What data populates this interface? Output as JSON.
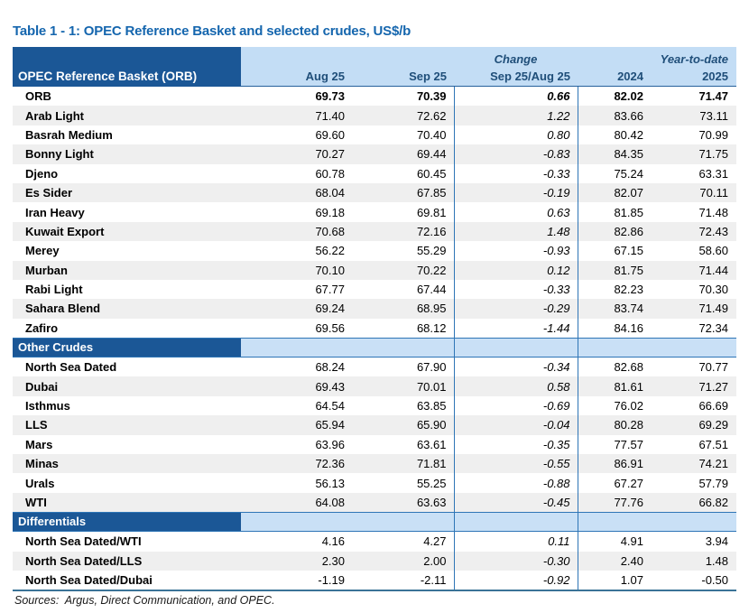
{
  "title": "Table 1 - 1: OPEC Reference Basket and selected crudes, US$/b",
  "colors": {
    "dark_blue": "#1B5796",
    "header_band": "#C3DDF5",
    "section_band": "#C9E0F6",
    "header_text": "#1F4E79",
    "title_color": "#1566AE",
    "vline": "#2E75B6",
    "header_underline": "#26619C",
    "bottom_line": "#3A7397",
    "stripe": "#EFEFEF"
  },
  "header": {
    "corner_label": "OPEC Reference Basket (ORB)",
    "change_group_label": "Change",
    "ytd_group_label": "Year-to-date",
    "columns": [
      "Aug 25",
      "Sep 25",
      "Sep 25/Aug 25",
      "2024",
      "2025"
    ]
  },
  "sections": [
    {
      "title": null,
      "rows": [
        {
          "label": "ORB",
          "values": [
            "69.73",
            "70.39",
            "0.66",
            "82.02",
            "71.47"
          ],
          "bold": true
        },
        {
          "label": "Arab Light",
          "values": [
            "71.40",
            "72.62",
            "1.22",
            "83.66",
            "73.11"
          ],
          "bold": false
        },
        {
          "label": "Basrah Medium",
          "values": [
            "69.60",
            "70.40",
            "0.80",
            "80.42",
            "70.99"
          ],
          "bold": false
        },
        {
          "label": "Bonny Light",
          "values": [
            "70.27",
            "69.44",
            "-0.83",
            "84.35",
            "71.75"
          ],
          "bold": false
        },
        {
          "label": "Djeno",
          "values": [
            "60.78",
            "60.45",
            "-0.33",
            "75.24",
            "63.31"
          ],
          "bold": false
        },
        {
          "label": "Es Sider",
          "values": [
            "68.04",
            "67.85",
            "-0.19",
            "82.07",
            "70.11"
          ],
          "bold": false
        },
        {
          "label": "Iran Heavy",
          "values": [
            "69.18",
            "69.81",
            "0.63",
            "81.85",
            "71.48"
          ],
          "bold": false
        },
        {
          "label": "Kuwait Export",
          "values": [
            "70.68",
            "72.16",
            "1.48",
            "82.86",
            "72.43"
          ],
          "bold": false
        },
        {
          "label": "Merey",
          "values": [
            "56.22",
            "55.29",
            "-0.93",
            "67.15",
            "58.60"
          ],
          "bold": false
        },
        {
          "label": "Murban",
          "values": [
            "70.10",
            "70.22",
            "0.12",
            "81.75",
            "71.44"
          ],
          "bold": false
        },
        {
          "label": "Rabi Light",
          "values": [
            "67.77",
            "67.44",
            "-0.33",
            "82.23",
            "70.30"
          ],
          "bold": false
        },
        {
          "label": "Sahara Blend",
          "values": [
            "69.24",
            "68.95",
            "-0.29",
            "83.74",
            "71.49"
          ],
          "bold": false
        },
        {
          "label": "Zafiro",
          "values": [
            "69.56",
            "68.12",
            "-1.44",
            "84.16",
            "72.34"
          ],
          "bold": false
        }
      ]
    },
    {
      "title": "Other Crudes",
      "rows": [
        {
          "label": "North Sea Dated",
          "values": [
            "68.24",
            "67.90",
            "-0.34",
            "82.68",
            "70.77"
          ],
          "bold": false
        },
        {
          "label": "Dubai",
          "values": [
            "69.43",
            "70.01",
            "0.58",
            "81.61",
            "71.27"
          ],
          "bold": false
        },
        {
          "label": "Isthmus",
          "values": [
            "64.54",
            "63.85",
            "-0.69",
            "76.02",
            "66.69"
          ],
          "bold": false
        },
        {
          "label": "LLS",
          "values": [
            "65.94",
            "65.90",
            "-0.04",
            "80.28",
            "69.29"
          ],
          "bold": false
        },
        {
          "label": "Mars",
          "values": [
            "63.96",
            "63.61",
            "-0.35",
            "77.57",
            "67.51"
          ],
          "bold": false
        },
        {
          "label": "Minas",
          "values": [
            "72.36",
            "71.81",
            "-0.55",
            "86.91",
            "74.21"
          ],
          "bold": false
        },
        {
          "label": "Urals",
          "values": [
            "56.13",
            "55.25",
            "-0.88",
            "67.27",
            "57.79"
          ],
          "bold": false
        },
        {
          "label": "WTI",
          "values": [
            "64.08",
            "63.63",
            "-0.45",
            "77.76",
            "66.82"
          ],
          "bold": false
        }
      ]
    },
    {
      "title": "Differentials",
      "rows": [
        {
          "label": "North Sea Dated/WTI",
          "values": [
            "4.16",
            "4.27",
            "0.11",
            "4.91",
            "3.94"
          ],
          "bold": false
        },
        {
          "label": "North Sea Dated/LLS",
          "values": [
            "2.30",
            "2.00",
            "-0.30",
            "2.40",
            "1.48"
          ],
          "bold": false
        },
        {
          "label": "North Sea Dated/Dubai",
          "values": [
            "-1.19",
            "-2.11",
            "-0.92",
            "1.07",
            "-0.50"
          ],
          "bold": false
        }
      ]
    }
  ],
  "footer": {
    "sources": "Sources:  Argus, Direct Communication, and OPEC."
  }
}
